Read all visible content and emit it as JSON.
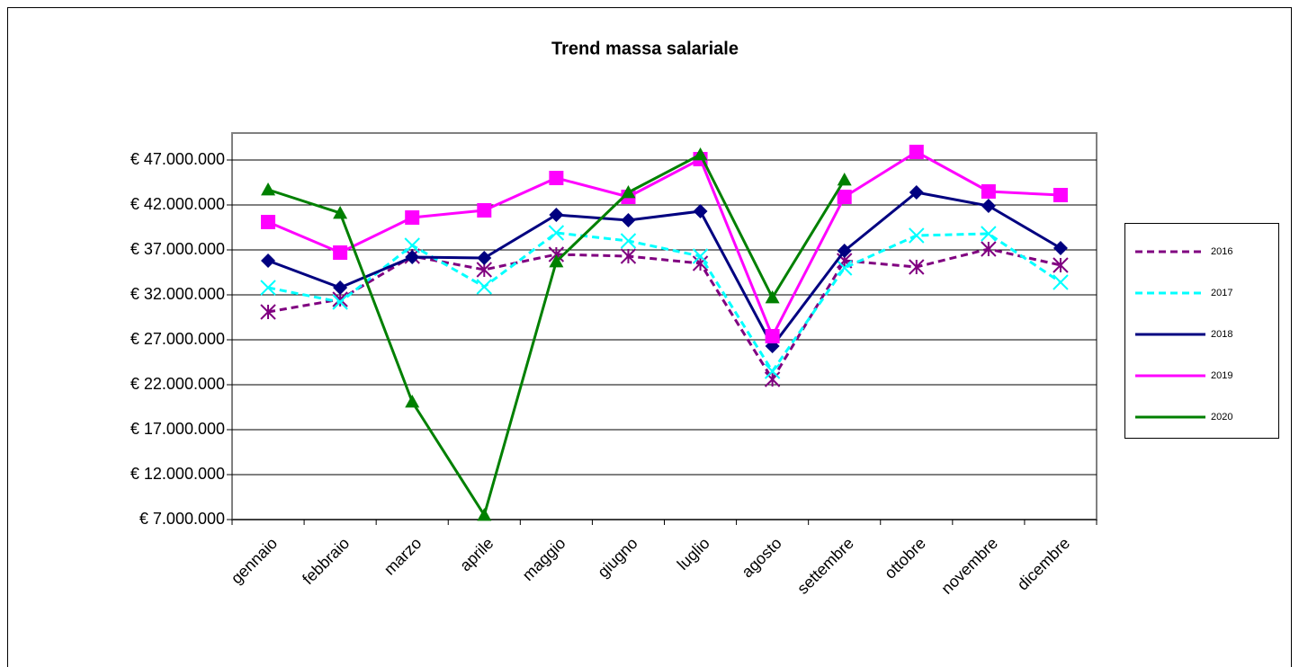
{
  "chart_data": {
    "type": "line",
    "title": "Trend massa salariale",
    "categories": [
      "gennaio",
      "febbraio",
      "marzo",
      "aprile",
      "maggio",
      "giugno",
      "luglio",
      "agosto",
      "settembre",
      "ottobre",
      "novembre",
      "dicembre"
    ],
    "series": [
      {
        "name": "2016",
        "color": "#800080",
        "dash": true,
        "marker": "asterisk",
        "values": [
          30100000,
          31500000,
          36300000,
          34800000,
          36500000,
          36300000,
          35500000,
          22600000,
          35800000,
          35100000,
          37100000,
          35300000
        ]
      },
      {
        "name": "2017",
        "color": "#00ffff",
        "dash": true,
        "marker": "x",
        "values": [
          32800000,
          31200000,
          37500000,
          32900000,
          38900000,
          38000000,
          36300000,
          23500000,
          35000000,
          38600000,
          38800000,
          33400000
        ]
      },
      {
        "name": "2018",
        "color": "#000080",
        "dash": false,
        "marker": "diamond",
        "values": [
          35800000,
          32800000,
          36200000,
          36100000,
          40900000,
          40300000,
          41300000,
          26300000,
          36900000,
          43400000,
          41900000,
          37200000
        ]
      },
      {
        "name": "2019",
        "color": "#ff00ff",
        "dash": false,
        "marker": "square",
        "values": [
          40100000,
          36700000,
          40600000,
          41400000,
          45000000,
          42900000,
          47100000,
          27400000,
          42900000,
          47900000,
          43500000,
          43100000
        ]
      },
      {
        "name": "2020",
        "color": "#008000",
        "dash": false,
        "marker": "triangle",
        "values": [
          43700000,
          41100000,
          20100000,
          7500000,
          35700000,
          43400000,
          47600000,
          31700000,
          44800000,
          null,
          null,
          null
        ]
      }
    ],
    "ylim": [
      7000000,
      50000000
    ],
    "yticks": [
      {
        "value": 7000000,
        "label": "€ 7.000.000"
      },
      {
        "value": 12000000,
        "label": "€ 12.000.000"
      },
      {
        "value": 17000000,
        "label": "€ 17.000.000"
      },
      {
        "value": 22000000,
        "label": "€ 22.000.000"
      },
      {
        "value": 27000000,
        "label": "€ 27.000.000"
      },
      {
        "value": 32000000,
        "label": "€ 32.000.000"
      },
      {
        "value": 37000000,
        "label": "€ 37.000.000"
      },
      {
        "value": 42000000,
        "label": "€ 42.000.000"
      },
      {
        "value": 47000000,
        "label": "€ 47.000.000"
      }
    ],
    "grid": true,
    "legend": "right"
  }
}
